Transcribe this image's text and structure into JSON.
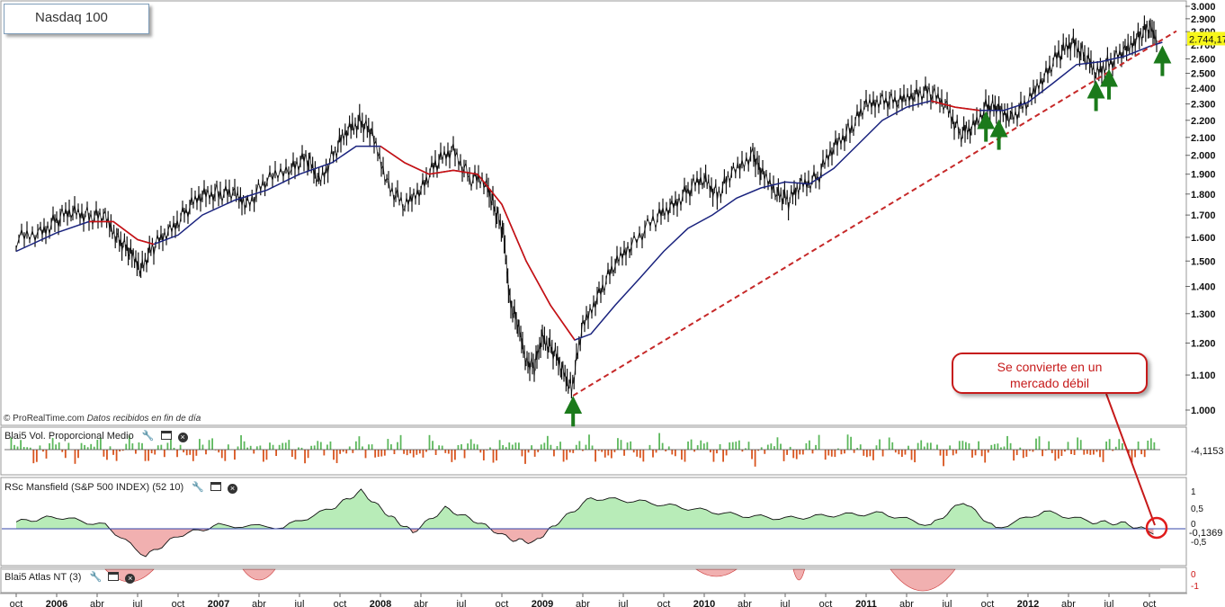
{
  "title": "Nasdaq 100",
  "callout": {
    "line1": "Se convierte en un",
    "line2": "mercado débil"
  },
  "source": {
    "brand": "© ProRealTime.com",
    "note": "Datos recibidos en fin de día"
  },
  "colors": {
    "price": "#111111",
    "ma_fast": "#cc1111",
    "ma_slow": "#1a237e",
    "trendline": "#c62828",
    "arrow": "#1b7a1b",
    "vol_up": "#5cb85c",
    "vol_down": "#d9541e",
    "rsc_pos": "#b8ecb8",
    "rsc_neg": "#f1b0b0",
    "last_price_bg": "#f7f71a",
    "zero_line": "#3344aa"
  },
  "panels": {
    "volume": {
      "label": "Blai5 Vol. Proporcional Medio",
      "value": "-4,1153"
    },
    "mansfield": {
      "label": "RSc Mansfield (S&P 500 INDEX) (52 10)",
      "value": "-0,1369",
      "ticks": [
        "1",
        "0,5",
        "0",
        "-0,5"
      ]
    },
    "atlas": {
      "label": "Blai5 Atlas NT (3)",
      "ticks": [
        "0",
        "-1"
      ]
    }
  },
  "chart_data": {
    "type": "line",
    "title": "Nasdaq 100",
    "ylim": [
      950,
      3000
    ],
    "y_ticks": [
      "3.000",
      "2.900",
      "2.800",
      "2.700",
      "2.600",
      "2.500",
      "2.400",
      "2.300",
      "2.200",
      "2.100",
      "2.000",
      "1.900",
      "1.800",
      "1.700",
      "1.600",
      "1.500",
      "1.400",
      "1.300",
      "1.200",
      "1.100",
      "1.000"
    ],
    "last_price": "2.744,17",
    "x_labels": [
      "oct",
      "2006",
      "abr",
      "jul",
      "oct",
      "2007",
      "abr",
      "jul",
      "oct",
      "2008",
      "abr",
      "jul",
      "oct",
      "2009",
      "abr",
      "jul",
      "oct",
      "2010",
      "abr",
      "jul",
      "oct",
      "2011",
      "abr",
      "jul",
      "oct",
      "2012",
      "abr",
      "jul",
      "oct"
    ],
    "series": [
      {
        "values": [
          [
            2005.75,
            1590
          ],
          [
            2005.9,
            1620
          ],
          [
            2006.0,
            1680
          ],
          [
            2006.1,
            1720
          ],
          [
            2006.2,
            1700
          ],
          [
            2006.3,
            1680
          ],
          [
            2006.38,
            1600
          ],
          [
            2006.45,
            1530
          ],
          [
            2006.52,
            1480
          ],
          [
            2006.6,
            1560
          ],
          [
            2006.7,
            1630
          ],
          [
            2006.8,
            1720
          ],
          [
            2006.9,
            1800
          ],
          [
            2007.0,
            1810
          ],
          [
            2007.1,
            1790
          ],
          [
            2007.18,
            1760
          ],
          [
            2007.3,
            1860
          ],
          [
            2007.45,
            1950
          ],
          [
            2007.55,
            1980
          ],
          [
            2007.62,
            1860
          ],
          [
            2007.72,
            2020
          ],
          [
            2007.8,
            2150
          ],
          [
            2007.88,
            2200
          ],
          [
            2007.95,
            2100
          ],
          [
            2008.05,
            1850
          ],
          [
            2008.15,
            1730
          ],
          [
            2008.25,
            1840
          ],
          [
            2008.35,
            1960
          ],
          [
            2008.45,
            2030
          ],
          [
            2008.55,
            1880
          ],
          [
            2008.65,
            1860
          ],
          [
            2008.7,
            1750
          ],
          [
            2008.76,
            1600
          ],
          [
            2008.8,
            1350
          ],
          [
            2008.85,
            1250
          ],
          [
            2008.9,
            1150
          ],
          [
            2008.95,
            1120
          ],
          [
            2009.0,
            1220
          ],
          [
            2009.06,
            1180
          ],
          [
            2009.12,
            1120
          ],
          [
            2009.18,
            1060
          ],
          [
            2009.25,
            1250
          ],
          [
            2009.35,
            1380
          ],
          [
            2009.45,
            1480
          ],
          [
            2009.55,
            1580
          ],
          [
            2009.7,
            1680
          ],
          [
            2009.8,
            1740
          ],
          [
            2009.9,
            1820
          ],
          [
            2010.0,
            1880
          ],
          [
            2010.08,
            1800
          ],
          [
            2010.18,
            1900
          ],
          [
            2010.3,
            2020
          ],
          [
            2010.35,
            1900
          ],
          [
            2010.45,
            1820
          ],
          [
            2010.52,
            1760
          ],
          [
            2010.6,
            1850
          ],
          [
            2010.7,
            1880
          ],
          [
            2010.8,
            2050
          ],
          [
            2010.9,
            2150
          ],
          [
            2011.0,
            2280
          ],
          [
            2011.1,
            2340
          ],
          [
            2011.2,
            2300
          ],
          [
            2011.3,
            2380
          ],
          [
            2011.4,
            2370
          ],
          [
            2011.5,
            2280
          ],
          [
            2011.58,
            2120
          ],
          [
            2011.65,
            2150
          ],
          [
            2011.75,
            2300
          ],
          [
            2011.82,
            2250
          ],
          [
            2011.9,
            2230
          ],
          [
            2012.0,
            2300
          ],
          [
            2012.1,
            2500
          ],
          [
            2012.2,
            2640
          ],
          [
            2012.28,
            2720
          ],
          [
            2012.35,
            2620
          ],
          [
            2012.42,
            2500
          ],
          [
            2012.5,
            2580
          ],
          [
            2012.6,
            2640
          ],
          [
            2012.68,
            2780
          ],
          [
            2012.75,
            2820
          ],
          [
            2012.8,
            2750
          ]
        ]
      },
      {
        "values": [
          [
            2005.75,
            1540
          ],
          [
            2006.0,
            1620
          ],
          [
            2006.2,
            1670
          ],
          [
            2006.35,
            1670
          ],
          [
            2006.5,
            1590
          ],
          [
            2006.6,
            1570
          ],
          [
            2006.75,
            1610
          ],
          [
            2006.9,
            1700
          ],
          [
            2007.1,
            1770
          ],
          [
            2007.3,
            1820
          ],
          [
            2007.5,
            1900
          ],
          [
            2007.7,
            1960
          ],
          [
            2007.85,
            2050
          ],
          [
            2008.0,
            2050
          ],
          [
            2008.15,
            1960
          ],
          [
            2008.3,
            1900
          ],
          [
            2008.45,
            1920
          ],
          [
            2008.6,
            1900
          ],
          [
            2008.75,
            1750
          ],
          [
            2008.9,
            1500
          ],
          [
            2009.05,
            1330
          ],
          [
            2009.2,
            1210
          ],
          [
            2009.3,
            1230
          ],
          [
            2009.45,
            1330
          ],
          [
            2009.6,
            1430
          ],
          [
            2009.75,
            1540
          ],
          [
            2009.9,
            1640
          ],
          [
            2010.05,
            1700
          ],
          [
            2010.2,
            1780
          ],
          [
            2010.35,
            1830
          ],
          [
            2010.5,
            1860
          ],
          [
            2010.65,
            1850
          ],
          [
            2010.8,
            1930
          ],
          [
            2010.95,
            2060
          ],
          [
            2011.1,
            2200
          ],
          [
            2011.25,
            2280
          ],
          [
            2011.4,
            2320
          ],
          [
            2011.55,
            2280
          ],
          [
            2011.7,
            2260
          ],
          [
            2011.85,
            2260
          ],
          [
            2012.0,
            2310
          ],
          [
            2012.15,
            2430
          ],
          [
            2012.3,
            2560
          ],
          [
            2012.45,
            2580
          ],
          [
            2012.6,
            2620
          ],
          [
            2012.75,
            2690
          ],
          [
            2012.83,
            2720
          ]
        ]
      },
      {
        "values": [
          [
            2009.19,
            1040
          ],
          [
            2012.85,
            2750
          ]
        ]
      }
    ],
    "support_arrows_x": [
      2009.19,
      2011.74,
      2011.82,
      2012.42,
      2012.5,
      2012.83
    ]
  }
}
